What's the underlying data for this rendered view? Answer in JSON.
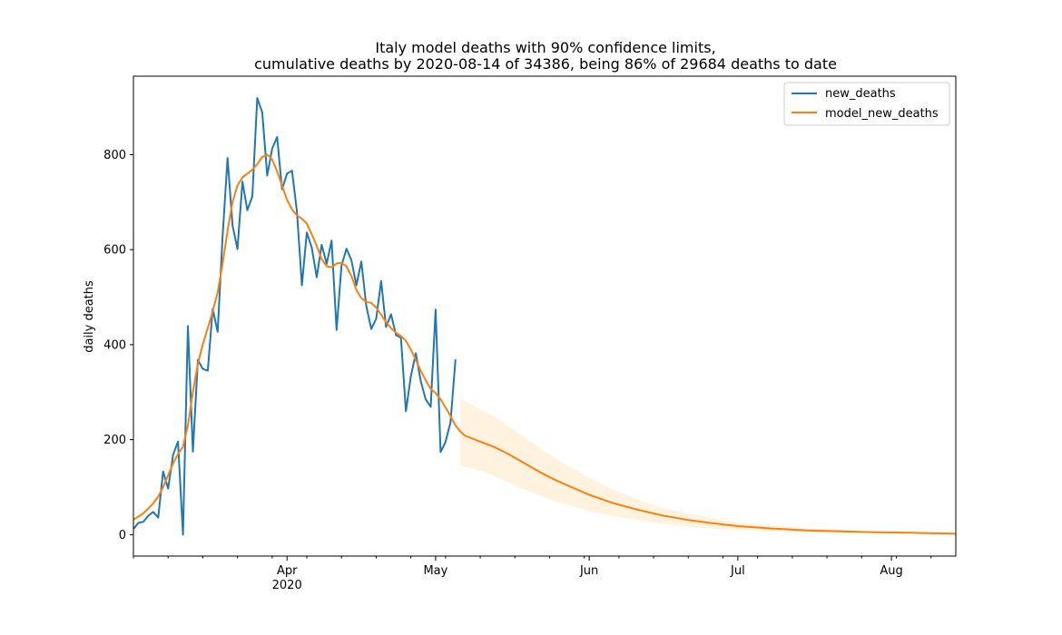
{
  "colors": {
    "new_deaths": "#1f77b4",
    "model_new_deaths": "#ff7f0e",
    "confidence_band": "#ffe9c9",
    "axes": "#000000",
    "background": "#ffffff"
  },
  "chart_data": {
    "type": "line",
    "title_line1": "Italy model deaths with 90% confidence limits,",
    "title_line2": "cumulative deaths by 2020-08-14 of 34386, being 86% of 29684 deaths to date",
    "xlabel": "",
    "ylabel": "daily deaths",
    "x_range": [
      "2020-03-01",
      "2020-08-14"
    ],
    "ylim": [
      -45,
      965
    ],
    "y_ticks": [
      0,
      200,
      400,
      600,
      800
    ],
    "x_major_ticks": [
      {
        "date": "2020-04-01",
        "label": "Apr",
        "sublabel": "2020"
      },
      {
        "date": "2020-05-01",
        "label": "May",
        "sublabel": ""
      },
      {
        "date": "2020-06-01",
        "label": "Jun",
        "sublabel": ""
      },
      {
        "date": "2020-07-01",
        "label": "Jul",
        "sublabel": ""
      },
      {
        "date": "2020-08-01",
        "label": "Aug",
        "sublabel": ""
      }
    ],
    "grid": false,
    "legend_position": "top-right",
    "series": [
      {
        "name": "new_deaths",
        "key": "new_deaths",
        "points": [
          [
            "2020-03-01",
            12
          ],
          [
            "2020-03-02",
            25
          ],
          [
            "2020-03-03",
            27
          ],
          [
            "2020-03-04",
            40
          ],
          [
            "2020-03-05",
            48
          ],
          [
            "2020-03-06",
            36
          ],
          [
            "2020-03-07",
            133
          ],
          [
            "2020-03-08",
            97
          ],
          [
            "2020-03-09",
            168
          ],
          [
            "2020-03-10",
            196
          ],
          [
            "2020-03-11",
            0
          ],
          [
            "2020-03-12",
            439
          ],
          [
            "2020-03-13",
            175
          ],
          [
            "2020-03-14",
            368
          ],
          [
            "2020-03-15",
            349
          ],
          [
            "2020-03-16",
            345
          ],
          [
            "2020-03-17",
            475
          ],
          [
            "2020-03-18",
            427
          ],
          [
            "2020-03-19",
            627
          ],
          [
            "2020-03-20",
            793
          ],
          [
            "2020-03-21",
            651
          ],
          [
            "2020-03-22",
            601
          ],
          [
            "2020-03-23",
            743
          ],
          [
            "2020-03-24",
            683
          ],
          [
            "2020-03-25",
            712
          ],
          [
            "2020-03-26",
            919
          ],
          [
            "2020-03-27",
            889
          ],
          [
            "2020-03-28",
            756
          ],
          [
            "2020-03-29",
            812
          ],
          [
            "2020-03-30",
            837
          ],
          [
            "2020-03-31",
            727
          ],
          [
            "2020-04-01",
            760
          ],
          [
            "2020-04-02",
            766
          ],
          [
            "2020-04-03",
            681
          ],
          [
            "2020-04-04",
            525
          ],
          [
            "2020-04-05",
            636
          ],
          [
            "2020-04-06",
            604
          ],
          [
            "2020-04-07",
            542
          ],
          [
            "2020-04-08",
            610
          ],
          [
            "2020-04-09",
            570
          ],
          [
            "2020-04-10",
            619
          ],
          [
            "2020-04-11",
            431
          ],
          [
            "2020-04-12",
            566
          ],
          [
            "2020-04-13",
            602
          ],
          [
            "2020-04-14",
            578
          ],
          [
            "2020-04-15",
            525
          ],
          [
            "2020-04-16",
            575
          ],
          [
            "2020-04-17",
            482
          ],
          [
            "2020-04-18",
            433
          ],
          [
            "2020-04-19",
            454
          ],
          [
            "2020-04-20",
            534
          ],
          [
            "2020-04-21",
            437
          ],
          [
            "2020-04-22",
            464
          ],
          [
            "2020-04-23",
            420
          ],
          [
            "2020-04-24",
            415
          ],
          [
            "2020-04-25",
            260
          ],
          [
            "2020-04-26",
            333
          ],
          [
            "2020-04-27",
            382
          ],
          [
            "2020-04-28",
            323
          ],
          [
            "2020-04-29",
            285
          ],
          [
            "2020-04-30",
            269
          ],
          [
            "2020-05-01",
            474
          ],
          [
            "2020-05-02",
            174
          ],
          [
            "2020-05-03",
            195
          ],
          [
            "2020-05-04",
            236
          ],
          [
            "2020-05-05",
            369
          ]
        ]
      },
      {
        "name": "model_new_deaths",
        "key": "model_new_deaths",
        "points": [
          [
            "2020-03-01",
            32
          ],
          [
            "2020-03-02",
            38
          ],
          [
            "2020-03-03",
            45
          ],
          [
            "2020-03-04",
            55
          ],
          [
            "2020-03-05",
            66
          ],
          [
            "2020-03-06",
            80
          ],
          [
            "2020-03-07",
            100
          ],
          [
            "2020-03-08",
            125
          ],
          [
            "2020-03-09",
            150
          ],
          [
            "2020-03-10",
            170
          ],
          [
            "2020-03-11",
            185
          ],
          [
            "2020-03-12",
            230
          ],
          [
            "2020-03-13",
            300
          ],
          [
            "2020-03-14",
            360
          ],
          [
            "2020-03-15",
            400
          ],
          [
            "2020-03-16",
            435
          ],
          [
            "2020-03-17",
            470
          ],
          [
            "2020-03-18",
            510
          ],
          [
            "2020-03-19",
            570
          ],
          [
            "2020-03-20",
            640
          ],
          [
            "2020-03-21",
            700
          ],
          [
            "2020-03-22",
            735
          ],
          [
            "2020-03-23",
            752
          ],
          [
            "2020-03-24",
            760
          ],
          [
            "2020-03-25",
            768
          ],
          [
            "2020-03-26",
            780
          ],
          [
            "2020-03-27",
            795
          ],
          [
            "2020-03-28",
            800
          ],
          [
            "2020-03-29",
            790
          ],
          [
            "2020-03-30",
            765
          ],
          [
            "2020-03-31",
            735
          ],
          [
            "2020-04-01",
            705
          ],
          [
            "2020-04-02",
            685
          ],
          [
            "2020-04-03",
            672
          ],
          [
            "2020-04-04",
            665
          ],
          [
            "2020-04-05",
            655
          ],
          [
            "2020-04-06",
            632
          ],
          [
            "2020-04-07",
            608
          ],
          [
            "2020-04-08",
            580
          ],
          [
            "2020-04-09",
            565
          ],
          [
            "2020-04-10",
            563
          ],
          [
            "2020-04-11",
            571
          ],
          [
            "2020-04-12",
            572
          ],
          [
            "2020-04-13",
            565
          ],
          [
            "2020-04-14",
            545
          ],
          [
            "2020-04-15",
            515
          ],
          [
            "2020-04-16",
            498
          ],
          [
            "2020-04-17",
            490
          ],
          [
            "2020-04-18",
            488
          ],
          [
            "2020-04-19",
            478
          ],
          [
            "2020-04-20",
            463
          ],
          [
            "2020-04-21",
            447
          ],
          [
            "2020-04-22",
            435
          ],
          [
            "2020-04-23",
            425
          ],
          [
            "2020-04-24",
            418
          ],
          [
            "2020-04-25",
            408
          ],
          [
            "2020-04-26",
            390
          ],
          [
            "2020-04-27",
            368
          ],
          [
            "2020-04-28",
            345
          ],
          [
            "2020-04-29",
            325
          ],
          [
            "2020-04-30",
            307
          ],
          [
            "2020-05-01",
            298
          ],
          [
            "2020-05-02",
            285
          ],
          [
            "2020-05-03",
            268
          ],
          [
            "2020-05-04",
            250
          ],
          [
            "2020-05-05",
            230
          ],
          [
            "2020-05-06",
            217
          ],
          [
            "2020-05-07",
            208
          ],
          [
            "2020-05-10",
            196
          ],
          [
            "2020-05-13",
            184
          ],
          [
            "2020-05-16",
            168
          ],
          [
            "2020-05-19",
            150
          ],
          [
            "2020-05-22",
            132
          ],
          [
            "2020-05-25",
            116
          ],
          [
            "2020-05-28",
            102
          ],
          [
            "2020-06-01",
            84
          ],
          [
            "2020-06-06",
            66
          ],
          [
            "2020-06-11",
            52
          ],
          [
            "2020-06-16",
            40
          ],
          [
            "2020-06-21",
            31
          ],
          [
            "2020-06-26",
            24
          ],
          [
            "2020-07-01",
            18
          ],
          [
            "2020-07-08",
            13
          ],
          [
            "2020-07-15",
            9
          ],
          [
            "2020-07-22",
            7
          ],
          [
            "2020-07-29",
            5
          ],
          [
            "2020-08-05",
            4
          ],
          [
            "2020-08-10",
            3
          ],
          [
            "2020-08-14",
            2
          ]
        ]
      }
    ],
    "confidence_band": {
      "name": "90% confidence limits",
      "points": [
        [
          "2020-05-06",
          145,
          287
        ],
        [
          "2020-05-10",
          135,
          264
        ],
        [
          "2020-05-14",
          118,
          241
        ],
        [
          "2020-05-18",
          100,
          212
        ],
        [
          "2020-05-22",
          82,
          182
        ],
        [
          "2020-05-26",
          67,
          155
        ],
        [
          "2020-06-01",
          50,
          120
        ],
        [
          "2020-06-06",
          39,
          94
        ],
        [
          "2020-06-11",
          30,
          73
        ],
        [
          "2020-06-16",
          23,
          56
        ],
        [
          "2020-06-21",
          17,
          44
        ],
        [
          "2020-06-26",
          13,
          34
        ],
        [
          "2020-07-01",
          10,
          26
        ],
        [
          "2020-07-08",
          7,
          19
        ],
        [
          "2020-07-15",
          5,
          13
        ],
        [
          "2020-07-22",
          4,
          10
        ],
        [
          "2020-07-29",
          3,
          7
        ],
        [
          "2020-08-05",
          2,
          6
        ],
        [
          "2020-08-14",
          1,
          4
        ]
      ]
    }
  }
}
